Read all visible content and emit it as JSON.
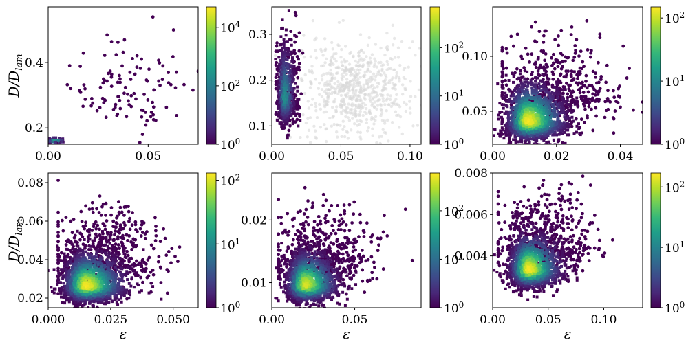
{
  "colors": {
    "viridis": [
      "#440154",
      "#482878",
      "#3e4989",
      "#31688e",
      "#26828e",
      "#1f9e89",
      "#35b779",
      "#6ece58",
      "#b5de2b",
      "#fde725"
    ],
    "background_hex": "#d9d9d9"
  },
  "chart_data": [
    {
      "type": "scatter",
      "xlabel": "",
      "ylabel": "D/D_lam",
      "xlim": [
        0,
        0.075
      ],
      "ylim": [
        0.15,
        0.57
      ],
      "xticks": [
        0,
        0.05
      ],
      "xtick_labels": [
        "0.00",
        "0.05"
      ],
      "yticks": [
        0.2,
        0.4
      ],
      "ytick_labels": [
        "0.2",
        "0.4"
      ],
      "colorbar": {
        "scale": "log",
        "min": 1,
        "max": 50000,
        "ticks": [
          1,
          100,
          10000
        ],
        "tick_labels": [
          "10^0",
          "10^2",
          "10^4"
        ]
      },
      "dense_region": {
        "x": 0.003,
        "y": 0.16,
        "sx": 0.003,
        "sy": 0.006,
        "n": 60,
        "max_density": 0.6
      },
      "sparse_region": {
        "x": 0.04,
        "y": 0.3,
        "sx": 0.014,
        "sy": 0.1,
        "n": 110,
        "xmin": 0.003,
        "xmax": 0.075,
        "ymin": 0.15,
        "ymax": 0.57
      },
      "grey_background": null
    },
    {
      "type": "scatter",
      "xlabel": "",
      "ylabel": "",
      "xlim": [
        0,
        0.108
      ],
      "ylim": [
        0.06,
        0.36
      ],
      "xticks": [
        0,
        0.05,
        0.1
      ],
      "xtick_labels": [
        "0.00",
        "0.05",
        "0.10"
      ],
      "yticks": [
        0.1,
        0.2,
        0.3
      ],
      "ytick_labels": [
        "0.1",
        "0.2",
        "0.3"
      ],
      "colorbar": {
        "scale": "log",
        "min": 1,
        "max": 700,
        "ticks": [
          1,
          10,
          100
        ],
        "tick_labels": [
          "10^0",
          "10^1",
          "10^2"
        ]
      },
      "dense_region": {
        "x": 0.009,
        "y": 0.16,
        "sx": 0.004,
        "sy": 0.06,
        "n": 650,
        "max_density": 0.5
      },
      "sparse_region": {
        "x": 0.012,
        "y": 0.17,
        "sx": 0.005,
        "sy": 0.07,
        "n": 200,
        "xmin": 0.003,
        "xmax": 0.03,
        "ymin": 0.06,
        "ymax": 0.36
      },
      "grey_background": {
        "x": 0.06,
        "y": 0.18,
        "sx": 0.02,
        "sy": 0.05,
        "n": 700
      }
    },
    {
      "type": "scatter",
      "xlabel": "",
      "ylabel": "",
      "xlim": [
        0,
        0.047
      ],
      "ylim": [
        0.02,
        0.145
      ],
      "xticks": [
        0,
        0.02,
        0.04
      ],
      "xtick_labels": [
        "0.00",
        "0.02",
        "0.04"
      ],
      "yticks": [
        0.05,
        0.1
      ],
      "ytick_labels": [
        "0.05",
        "0.10"
      ],
      "colorbar": {
        "scale": "log",
        "min": 1,
        "max": 150,
        "ticks": [
          1,
          10,
          100
        ],
        "tick_labels": [
          "10^0",
          "10^1",
          "10^2"
        ]
      },
      "dense_region": {
        "x": 0.011,
        "y": 0.04,
        "sx": 0.006,
        "sy": 0.018,
        "n": 1600,
        "max_density": 1.0
      },
      "sparse_region": {
        "x": 0.02,
        "y": 0.065,
        "sx": 0.01,
        "sy": 0.025,
        "n": 500,
        "xmin": 0.003,
        "xmax": 0.047,
        "ymin": 0.02,
        "ymax": 0.145
      },
      "grey_background": null
    },
    {
      "type": "scatter",
      "xlabel": "ε",
      "ylabel": "D/D_lam",
      "xlim": [
        0,
        0.06
      ],
      "ylim": [
        0.015,
        0.085
      ],
      "xticks": [
        0,
        0.025,
        0.05
      ],
      "xtick_labels": [
        "0.000",
        "0.025",
        "0.050"
      ],
      "yticks": [
        0.02,
        0.04,
        0.06,
        0.08
      ],
      "ytick_labels": [
        "0.02",
        "0.04",
        "0.06",
        "0.08"
      ],
      "colorbar": {
        "scale": "log",
        "min": 1,
        "max": 130,
        "ticks": [
          1,
          10,
          100
        ],
        "tick_labels": [
          "10^0",
          "10^1",
          "10^2"
        ]
      },
      "dense_region": {
        "x": 0.015,
        "y": 0.026,
        "sx": 0.008,
        "sy": 0.009,
        "n": 1800,
        "max_density": 1.0
      },
      "sparse_region": {
        "x": 0.022,
        "y": 0.04,
        "sx": 0.011,
        "sy": 0.014,
        "n": 600,
        "xmin": 0.004,
        "xmax": 0.06,
        "ymin": 0.015,
        "ymax": 0.085
      },
      "grey_background": null
    },
    {
      "type": "scatter",
      "xlabel": "ε",
      "ylabel": "",
      "xlim": [
        0,
        0.09
      ],
      "ylim": [
        0.006,
        0.0275
      ],
      "xticks": [
        0,
        0.05
      ],
      "xtick_labels": [
        "0.00",
        "0.05"
      ],
      "yticks": [
        0.01,
        0.02
      ],
      "ytick_labels": [
        "0.01",
        "0.02"
      ],
      "colorbar": {
        "scale": "log",
        "min": 1,
        "max": 600,
        "ticks": [
          1,
          10,
          100
        ],
        "tick_labels": [
          "10^0",
          "10^1",
          "10^2"
        ]
      },
      "dense_region": {
        "x": 0.02,
        "y": 0.0095,
        "sx": 0.01,
        "sy": 0.0028,
        "n": 1500,
        "max_density": 0.95
      },
      "sparse_region": {
        "x": 0.03,
        "y": 0.014,
        "sx": 0.016,
        "sy": 0.004,
        "n": 550,
        "xmin": 0.004,
        "xmax": 0.09,
        "ymin": 0.006,
        "ymax": 0.0275
      },
      "grey_background": null
    },
    {
      "type": "scatter",
      "xlabel": "ε",
      "ylabel": "",
      "xlim": [
        0,
        0.135
      ],
      "ylim": [
        0.0015,
        0.008
      ],
      "xticks": [
        0,
        0.05,
        0.1
      ],
      "xtick_labels": [
        "0.00",
        "0.05",
        "0.10"
      ],
      "yticks": [
        0.004,
        0.006,
        0.008
      ],
      "ytick_labels": [
        "0.004",
        "0.006",
        "0.008"
      ],
      "colorbar": {
        "scale": "log",
        "min": 1,
        "max": 170,
        "ticks": [
          1,
          10,
          100
        ],
        "tick_labels": [
          "10^0",
          "10^1",
          "10^2"
        ]
      },
      "dense_region": {
        "x": 0.032,
        "y": 0.0033,
        "sx": 0.015,
        "sy": 0.0009,
        "n": 1500,
        "max_density": 1.0
      },
      "sparse_region": {
        "x": 0.045,
        "y": 0.0045,
        "sx": 0.022,
        "sy": 0.0013,
        "n": 550,
        "xmin": 0.005,
        "xmax": 0.135,
        "ymin": 0.0015,
        "ymax": 0.008
      },
      "grey_background": null
    }
  ]
}
